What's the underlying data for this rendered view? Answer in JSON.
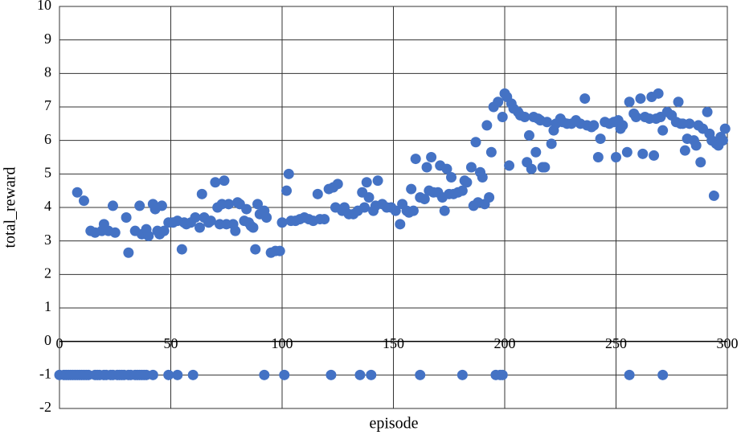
{
  "chart_data": {
    "type": "scatter",
    "x_label": "episode",
    "y_label": "total_reward",
    "color": "#4472c4",
    "grid": true,
    "xlim": [
      0,
      300
    ],
    "ylim": [
      -2,
      10
    ],
    "xticks": [
      0,
      50,
      100,
      150,
      200,
      250,
      300
    ],
    "yticks": [
      -2,
      -1,
      0,
      1,
      2,
      3,
      4,
      5,
      6,
      7,
      8,
      9,
      10
    ],
    "x": [
      0,
      2,
      3,
      4,
      5,
      6,
      7,
      8,
      9,
      10,
      11,
      12,
      13,
      16,
      17,
      18,
      20,
      21,
      23,
      24,
      26,
      27,
      28,
      29,
      31,
      32,
      34,
      35,
      36,
      37,
      38,
      39,
      42,
      49,
      53,
      60,
      92,
      101,
      122,
      135,
      140,
      162,
      181,
      196,
      198,
      199,
      256,
      271,
      8,
      11,
      14,
      16,
      19,
      20,
      22,
      24,
      25,
      30,
      31,
      34,
      36,
      37,
      39,
      40,
      42,
      43,
      44,
      45,
      46,
      47,
      49,
      51,
      53,
      55,
      56,
      57,
      59,
      61,
      63,
      64,
      65,
      67,
      68,
      70,
      71,
      72,
      73,
      74,
      75,
      76,
      78,
      79,
      80,
      81,
      83,
      84,
      85,
      86,
      87,
      88,
      89,
      90,
      92,
      93,
      95,
      97,
      99,
      100,
      102,
      103,
      104,
      106,
      108,
      110,
      112,
      114,
      116,
      117,
      119,
      121,
      123,
      124,
      125,
      127,
      128,
      130,
      132,
      134,
      136,
      137,
      138,
      139,
      141,
      142,
      143,
      145,
      147,
      149,
      151,
      153,
      154,
      156,
      157,
      158,
      159,
      160,
      162,
      164,
      165,
      166,
      167,
      168,
      170,
      171,
      172,
      173,
      174,
      175,
      176,
      177,
      179,
      181,
      182,
      183,
      185,
      186,
      187,
      188,
      189,
      190,
      191,
      192,
      193,
      194,
      195,
      197,
      199,
      200,
      201,
      202,
      203,
      204,
      206,
      207,
      209,
      210,
      211,
      212,
      213,
      214,
      215,
      216,
      217,
      218,
      219,
      221,
      222,
      223,
      225,
      226,
      228,
      230,
      232,
      234,
      236,
      237,
      239,
      240,
      242,
      243,
      245,
      247,
      249,
      250,
      251,
      252,
      253,
      255,
      256,
      258,
      259,
      261,
      262,
      263,
      265,
      266,
      267,
      268,
      269,
      270,
      271,
      273,
      275,
      277,
      278,
      279,
      280,
      281,
      282,
      283,
      285,
      286,
      287,
      288,
      289,
      291,
      292,
      293,
      294,
      295,
      296,
      297,
      298,
      299
    ],
    "values": [
      -1,
      -1,
      -1,
      -1,
      -1,
      -1,
      -1,
      -1,
      -1,
      -1,
      -1,
      -1,
      -1,
      -1,
      -1,
      -1,
      -1,
      -1,
      -1,
      -1,
      -1,
      -1,
      -1,
      -1,
      -1,
      -1,
      -1,
      -1,
      -1,
      -1,
      -1,
      -1,
      -1,
      -1,
      -1,
      -1,
      -1,
      -1,
      -1,
      -1,
      -1,
      -1,
      -1,
      -1,
      -1,
      -1,
      -1,
      -1,
      4.45,
      4.2,
      3.3,
      3.25,
      3.3,
      3.5,
      3.3,
      4.05,
      3.25,
      3.7,
      2.65,
      3.3,
      4.05,
      3.2,
      3.35,
      3.15,
      4.1,
      3.95,
      3.3,
      3.2,
      4.05,
      3.3,
      3.55,
      3.55,
      3.6,
      2.75,
      3.55,
      3.5,
      3.55,
      3.7,
      3.4,
      4.4,
      3.7,
      3.55,
      3.6,
      4.75,
      4.0,
      3.5,
      4.1,
      4.8,
      3.5,
      4.1,
      3.5,
      3.3,
      4.15,
      4.1,
      3.6,
      3.95,
      3.55,
      3.45,
      3.4,
      2.75,
      4.1,
      3.8,
      3.9,
      3.7,
      2.65,
      2.7,
      2.7,
      3.55,
      4.5,
      5.0,
      3.6,
      3.6,
      3.65,
      3.7,
      3.65,
      3.6,
      4.4,
      3.65,
      3.65,
      4.55,
      4.6,
      4.0,
      4.7,
      3.9,
      4.0,
      3.8,
      3.8,
      3.9,
      4.45,
      4.0,
      4.75,
      4.3,
      3.9,
      4.05,
      4.8,
      4.1,
      4.0,
      4.0,
      3.9,
      3.5,
      4.1,
      3.9,
      3.85,
      4.55,
      3.9,
      5.45,
      4.3,
      4.25,
      5.2,
      4.5,
      5.5,
      4.45,
      4.45,
      5.25,
      4.3,
      3.9,
      5.15,
      4.4,
      4.9,
      4.4,
      4.45,
      4.5,
      4.8,
      4.75,
      5.2,
      4.05,
      5.95,
      4.15,
      5.05,
      4.9,
      4.1,
      6.45,
      4.3,
      5.65,
      7.0,
      7.15,
      6.7,
      7.4,
      7.3,
      5.25,
      7.1,
      6.95,
      6.85,
      6.75,
      6.7,
      5.35,
      6.15,
      5.15,
      6.7,
      5.65,
      6.65,
      6.6,
      5.2,
      5.2,
      6.55,
      5.9,
      6.3,
      6.5,
      6.65,
      6.55,
      6.5,
      6.5,
      6.6,
      6.5,
      7.25,
      6.45,
      6.4,
      6.45,
      5.5,
      6.05,
      6.55,
      6.5,
      6.55,
      5.5,
      6.6,
      6.35,
      6.45,
      5.65,
      7.15,
      6.8,
      6.7,
      7.25,
      5.6,
      6.7,
      6.65,
      7.3,
      5.55,
      6.65,
      7.4,
      6.7,
      6.3,
      6.85,
      6.75,
      6.55,
      7.15,
      6.5,
      6.5,
      5.7,
      6.05,
      6.5,
      6.0,
      5.85,
      6.45,
      5.35,
      6.35,
      6.85,
      6.2,
      6.0,
      4.35,
      5.9,
      5.85,
      6.1,
      6.0,
      6.35
    ]
  }
}
